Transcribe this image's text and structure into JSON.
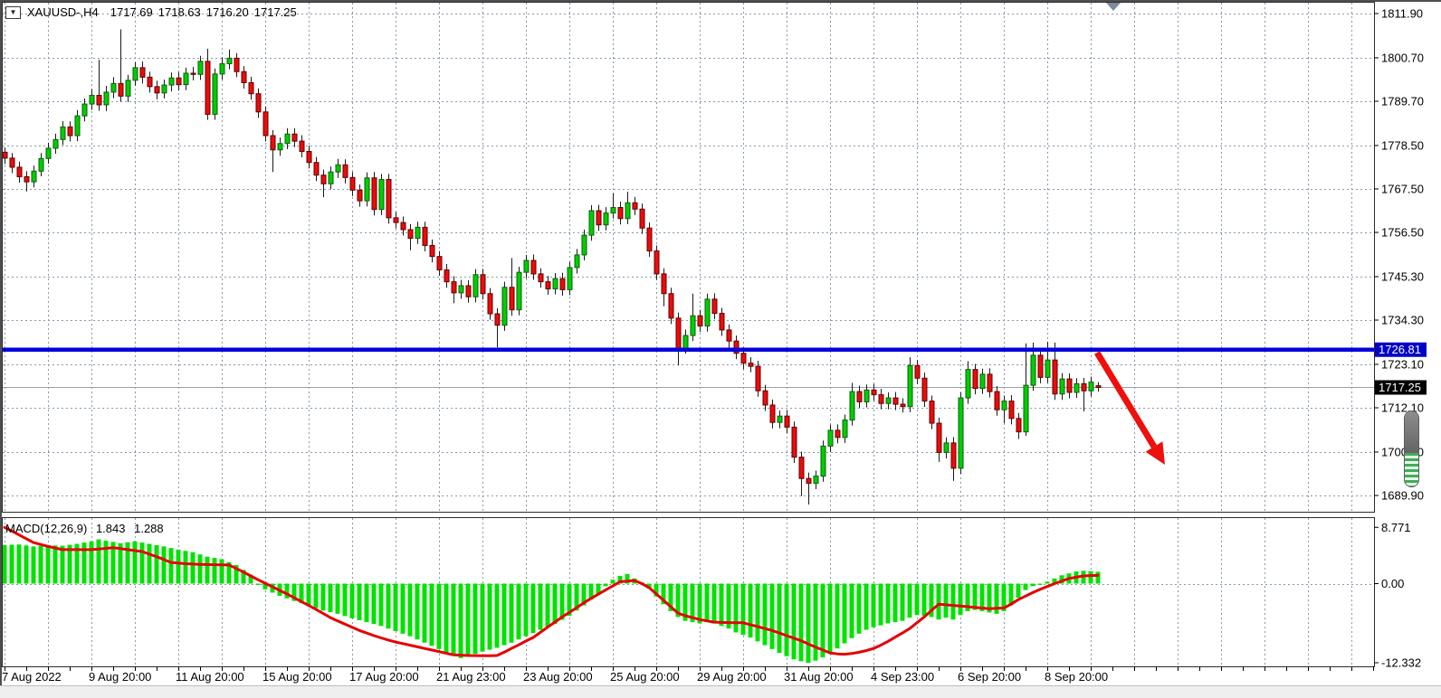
{
  "symbol_header": {
    "collapse_marker": "▼",
    "symbol_timeframe": "XAUUSD-,H4",
    "open": "1717.69",
    "high": "1718.63",
    "low": "1716.20",
    "close": "1717.25"
  },
  "indicator_header": {
    "name": "MACD(12,26,9)",
    "macd_value": "1.843",
    "signal_value": "1.288"
  },
  "price_axis": {
    "tick_labels": [
      "1811.90",
      "1800.70",
      "1789.70",
      "1778.50",
      "1767.50",
      "1756.50",
      "1745.30",
      "1734.30",
      "1723.10",
      "1712.10",
      "1700.90",
      "1689.90"
    ],
    "tick_values": [
      1811.9,
      1800.7,
      1789.7,
      1778.5,
      1767.5,
      1756.5,
      1745.3,
      1734.3,
      1723.1,
      1712.1,
      1700.9,
      1689.9
    ],
    "hline_label": "1726.81",
    "current_price_label": "1717.25"
  },
  "macd_axis": {
    "tick_labels": [
      "8.771",
      "0.00",
      "-12.332"
    ],
    "tick_values": [
      8.771,
      0,
      -12.332
    ]
  },
  "chart_data": {
    "type": "candlestick",
    "title": "XAUUSD- H4",
    "time_labels": [
      "7 Aug 2022",
      "9 Aug 20:00",
      "11 Aug 20:00",
      "15 Aug 20:00",
      "17 Aug 20:00",
      "21 Aug 23:00",
      "23 Aug 20:00",
      "25 Aug 20:00",
      "29 Aug 20:00",
      "31 Aug 20:00",
      "4 Sep 23:00",
      "6 Sep 20:00",
      "8 Sep 20:00"
    ],
    "candles_per_label": 12,
    "price_range_shown": [
      1685.0,
      1814.0
    ],
    "candles": [
      [
        1776.8,
        1778.0,
        1773.8,
        1775.3
      ],
      [
        1775.3,
        1776.6,
        1771.5,
        1773.0
      ],
      [
        1773.0,
        1774.4,
        1769.1,
        1770.6
      ],
      [
        1770.6,
        1772.0,
        1766.9,
        1769.3
      ],
      [
        1769.3,
        1773.4,
        1767.9,
        1772.0
      ],
      [
        1772.0,
        1776.6,
        1770.7,
        1775.2
      ],
      [
        1775.2,
        1779.2,
        1773.9,
        1777.8
      ],
      [
        1777.8,
        1781.5,
        1776.4,
        1780.0
      ],
      [
        1780.0,
        1784.7,
        1778.6,
        1783.2
      ],
      [
        1783.2,
        1784.6,
        1779.5,
        1781.0
      ],
      [
        1781.0,
        1787.5,
        1779.6,
        1786.0
      ],
      [
        1786.0,
        1790.4,
        1784.6,
        1789.0
      ],
      [
        1789.0,
        1792.8,
        1787.5,
        1791.2
      ],
      [
        1791.2,
        1800.2,
        1787.3,
        1788.8
      ],
      [
        1788.8,
        1793.6,
        1787.2,
        1792.0
      ],
      [
        1792.0,
        1795.8,
        1790.5,
        1794.2
      ],
      [
        1794.2,
        1807.9,
        1789.6,
        1791.0
      ],
      [
        1791.0,
        1796.4,
        1789.5,
        1795.0
      ],
      [
        1795.0,
        1799.6,
        1793.6,
        1798.2
      ],
      [
        1798.2,
        1799.8,
        1794.2,
        1795.8
      ],
      [
        1795.8,
        1797.2,
        1791.9,
        1793.4
      ],
      [
        1793.4,
        1794.9,
        1790.2,
        1791.8
      ],
      [
        1791.8,
        1795.2,
        1790.4,
        1793.8
      ],
      [
        1793.8,
        1797.0,
        1792.2,
        1795.6
      ],
      [
        1795.6,
        1797.1,
        1792.4,
        1793.9
      ],
      [
        1793.9,
        1798.2,
        1792.5,
        1796.8
      ],
      [
        1796.8,
        1798.4,
        1795.0,
        1796.5
      ],
      [
        1796.5,
        1801.2,
        1795.1,
        1799.8
      ],
      [
        1799.8,
        1803.0,
        1785.0,
        1786.4
      ],
      [
        1786.4,
        1798.0,
        1785.0,
        1796.6
      ],
      [
        1796.6,
        1800.8,
        1795.2,
        1799.2
      ],
      [
        1799.2,
        1802.8,
        1797.8,
        1800.6
      ],
      [
        1800.6,
        1801.9,
        1795.8,
        1797.2
      ],
      [
        1797.2,
        1798.6,
        1792.9,
        1794.4
      ],
      [
        1794.4,
        1795.9,
        1790.1,
        1791.6
      ],
      [
        1791.6,
        1793.0,
        1785.5,
        1787.0
      ],
      [
        1787.0,
        1788.4,
        1779.5,
        1781.0
      ],
      [
        1781.0,
        1782.4,
        1771.8,
        1777.4
      ],
      [
        1777.4,
        1780.5,
        1775.9,
        1779.0
      ],
      [
        1779.0,
        1782.9,
        1777.6,
        1781.4
      ],
      [
        1781.4,
        1782.9,
        1778.1,
        1779.6
      ],
      [
        1779.6,
        1781.1,
        1775.5,
        1777.0
      ],
      [
        1777.0,
        1778.5,
        1772.7,
        1774.2
      ],
      [
        1774.2,
        1775.6,
        1769.5,
        1771.0
      ],
      [
        1771.0,
        1772.4,
        1765.4,
        1768.8
      ],
      [
        1768.8,
        1773.2,
        1767.4,
        1771.8
      ],
      [
        1771.8,
        1775.1,
        1770.3,
        1773.6
      ],
      [
        1773.6,
        1775.0,
        1768.9,
        1770.4
      ],
      [
        1770.4,
        1771.8,
        1765.7,
        1767.2
      ],
      [
        1767.2,
        1768.6,
        1763.0,
        1764.5
      ],
      [
        1764.5,
        1771.7,
        1763.1,
        1770.3
      ],
      [
        1770.3,
        1771.8,
        1760.8,
        1762.3
      ],
      [
        1762.3,
        1771.3,
        1760.9,
        1769.9
      ],
      [
        1769.9,
        1771.3,
        1758.7,
        1760.2
      ],
      [
        1760.2,
        1761.7,
        1757.5,
        1759.0
      ],
      [
        1759.0,
        1760.5,
        1755.7,
        1757.2
      ],
      [
        1757.2,
        1758.6,
        1752.0,
        1755.0
      ],
      [
        1755.0,
        1759.2,
        1753.6,
        1757.8
      ],
      [
        1757.8,
        1759.2,
        1751.7,
        1753.2
      ],
      [
        1753.2,
        1754.7,
        1748.9,
        1750.4
      ],
      [
        1750.4,
        1751.8,
        1745.5,
        1747.0
      ],
      [
        1747.0,
        1748.5,
        1742.5,
        1744.0
      ],
      [
        1744.0,
        1745.4,
        1738.6,
        1741.2
      ],
      [
        1741.2,
        1744.5,
        1739.7,
        1743.0
      ],
      [
        1743.0,
        1744.4,
        1738.7,
        1740.2
      ],
      [
        1740.2,
        1747.2,
        1738.8,
        1745.8
      ],
      [
        1745.8,
        1747.3,
        1739.5,
        1741.0
      ],
      [
        1741.0,
        1742.4,
        1734.4,
        1735.9
      ],
      [
        1735.9,
        1737.3,
        1727.4,
        1733.0
      ],
      [
        1733.0,
        1744.0,
        1731.6,
        1742.6
      ],
      [
        1742.6,
        1750.0,
        1735.4,
        1736.9
      ],
      [
        1736.9,
        1747.8,
        1735.5,
        1746.4
      ],
      [
        1746.4,
        1750.8,
        1744.9,
        1749.4
      ],
      [
        1749.4,
        1750.9,
        1744.5,
        1746.0
      ],
      [
        1746.0,
        1747.4,
        1742.5,
        1744.0
      ],
      [
        1744.0,
        1745.5,
        1740.7,
        1742.2
      ],
      [
        1742.2,
        1746.2,
        1740.8,
        1744.8
      ],
      [
        1744.8,
        1746.3,
        1740.5,
        1742.0
      ],
      [
        1742.0,
        1749.0,
        1740.6,
        1747.6
      ],
      [
        1747.6,
        1752.3,
        1746.1,
        1750.8
      ],
      [
        1750.8,
        1757.2,
        1749.4,
        1755.8
      ],
      [
        1755.8,
        1763.4,
        1754.4,
        1762.0
      ],
      [
        1762.0,
        1763.5,
        1756.9,
        1758.4
      ],
      [
        1758.4,
        1762.9,
        1757.0,
        1761.4
      ],
      [
        1761.4,
        1766.4,
        1760.0,
        1762.8
      ],
      [
        1762.8,
        1764.3,
        1758.5,
        1760.0
      ],
      [
        1760.0,
        1766.8,
        1758.6,
        1764.0
      ],
      [
        1764.0,
        1765.5,
        1760.9,
        1762.4
      ],
      [
        1762.4,
        1763.8,
        1756.1,
        1757.6
      ],
      [
        1757.6,
        1759.0,
        1750.3,
        1751.8
      ],
      [
        1751.8,
        1753.2,
        1744.5,
        1746.0
      ],
      [
        1746.0,
        1747.4,
        1737.8,
        1741.0
      ],
      [
        1741.0,
        1742.5,
        1733.3,
        1734.8
      ],
      [
        1734.8,
        1736.2,
        1722.8,
        1727.2
      ],
      [
        1727.2,
        1731.9,
        1725.8,
        1730.4
      ],
      [
        1730.4,
        1741.0,
        1729.0,
        1735.4
      ],
      [
        1735.4,
        1736.9,
        1731.3,
        1732.8
      ],
      [
        1732.8,
        1741.0,
        1731.4,
        1739.6
      ],
      [
        1739.6,
        1741.1,
        1734.5,
        1736.0
      ],
      [
        1736.0,
        1737.4,
        1730.3,
        1731.8
      ],
      [
        1731.8,
        1733.2,
        1726.9,
        1729.0
      ],
      [
        1729.0,
        1730.4,
        1724.4,
        1725.9
      ],
      [
        1725.9,
        1727.4,
        1721.9,
        1723.4
      ],
      [
        1723.4,
        1724.9,
        1721.1,
        1722.6
      ],
      [
        1722.6,
        1724.0,
        1714.9,
        1716.4
      ],
      [
        1716.4,
        1717.9,
        1711.3,
        1712.8
      ],
      [
        1712.8,
        1714.2,
        1706.9,
        1708.4
      ],
      [
        1708.4,
        1711.4,
        1706.9,
        1710.0
      ],
      [
        1710.0,
        1711.5,
        1705.7,
        1707.2
      ],
      [
        1707.2,
        1708.6,
        1698.1,
        1699.6
      ],
      [
        1699.6,
        1701.0,
        1689.8,
        1694.2
      ],
      [
        1694.2,
        1695.7,
        1687.6,
        1693.0
      ],
      [
        1693.0,
        1696.2,
        1691.5,
        1694.8
      ],
      [
        1694.8,
        1703.8,
        1693.4,
        1702.4
      ],
      [
        1702.4,
        1707.8,
        1700.9,
        1706.4
      ],
      [
        1706.4,
        1707.9,
        1703.1,
        1704.6
      ],
      [
        1704.6,
        1710.4,
        1703.2,
        1709.0
      ],
      [
        1709.0,
        1718.4,
        1707.6,
        1716.2
      ],
      [
        1716.2,
        1717.7,
        1712.1,
        1713.6
      ],
      [
        1713.6,
        1718.0,
        1712.2,
        1716.6
      ],
      [
        1716.6,
        1718.1,
        1713.9,
        1715.4
      ],
      [
        1715.4,
        1716.9,
        1711.7,
        1713.2
      ],
      [
        1713.2,
        1716.0,
        1711.7,
        1714.6
      ],
      [
        1714.6,
        1716.1,
        1711.5,
        1713.0
      ],
      [
        1713.0,
        1714.5,
        1710.9,
        1712.4
      ],
      [
        1712.4,
        1724.9,
        1711.0,
        1722.8
      ],
      [
        1722.8,
        1724.2,
        1718.1,
        1719.6
      ],
      [
        1719.6,
        1721.0,
        1712.3,
        1713.8
      ],
      [
        1713.8,
        1715.2,
        1706.7,
        1708.2
      ],
      [
        1708.2,
        1709.6,
        1698.4,
        1700.8
      ],
      [
        1700.8,
        1704.6,
        1699.3,
        1703.2
      ],
      [
        1703.2,
        1704.7,
        1693.6,
        1696.8
      ],
      [
        1696.8,
        1716.0,
        1695.4,
        1714.6
      ],
      [
        1714.6,
        1723.9,
        1713.1,
        1721.8
      ],
      [
        1721.8,
        1723.2,
        1715.5,
        1717.0
      ],
      [
        1717.0,
        1722.0,
        1715.6,
        1720.6
      ],
      [
        1720.6,
        1722.1,
        1714.7,
        1716.2
      ],
      [
        1716.2,
        1717.6,
        1710.1,
        1711.6
      ],
      [
        1711.6,
        1715.2,
        1708.2,
        1713.8
      ],
      [
        1713.8,
        1715.3,
        1707.9,
        1709.4
      ],
      [
        1709.4,
        1710.8,
        1704.2,
        1706.0
      ],
      [
        1706.0,
        1728.4,
        1705.0,
        1717.8
      ],
      [
        1717.8,
        1728.6,
        1716.4,
        1725.4
      ],
      [
        1725.4,
        1726.9,
        1718.3,
        1719.8
      ],
      [
        1719.8,
        1728.8,
        1718.4,
        1724.2
      ],
      [
        1724.2,
        1728.6,
        1714.1,
        1715.6
      ],
      [
        1715.6,
        1720.9,
        1714.1,
        1719.4
      ],
      [
        1719.4,
        1720.8,
        1714.5,
        1716.0
      ],
      [
        1716.0,
        1719.6,
        1714.6,
        1718.2
      ],
      [
        1718.2,
        1719.7,
        1711.2,
        1716.4
      ],
      [
        1716.4,
        1720.0,
        1715.0,
        1718.6
      ],
      [
        1717.69,
        1718.63,
        1716.2,
        1717.25
      ]
    ],
    "overlays": {
      "horizontal_line_price": 1726.81,
      "current_price": 1717.25
    },
    "indicator": {
      "type": "macd_histogram",
      "params": [
        12,
        26,
        9
      ],
      "last_macd": 1.843,
      "last_signal": 1.288,
      "axis_range": [
        -12.332,
        8.771
      ],
      "histogram": [
        6.0,
        6.05,
        6.1,
        5.95,
        5.8,
        5.9,
        6.0,
        5.95,
        5.9,
        6.05,
        6.2,
        6.4,
        6.6,
        6.9,
        6.7,
        6.5,
        6.3,
        6.45,
        6.6,
        6.4,
        6.2,
        6.0,
        5.8,
        5.55,
        5.3,
        5.1,
        4.9,
        4.55,
        4.2,
        4.0,
        3.8,
        3.35,
        2.9,
        2.15,
        1.4,
        -0.2,
        -0.9,
        -1.4,
        -1.9,
        -2.3,
        -2.7,
        -3.05,
        -3.4,
        -3.8,
        -4.2,
        -4.45,
        -4.7,
        -5.05,
        -5.4,
        -5.7,
        -6.0,
        -6.3,
        -6.6,
        -7.0,
        -7.4,
        -7.8,
        -8.2,
        -8.7,
        -9.2,
        -9.7,
        -10.2,
        -10.7,
        -11.2,
        -11.6,
        -11.3,
        -10.95,
        -10.6,
        -10.3,
        -10.0,
        -9.6,
        -9.2,
        -8.7,
        -8.2,
        -7.7,
        -7.2,
        -6.75,
        -6.3,
        -5.65,
        -5.0,
        -4.2,
        -3.4,
        -2.5,
        -1.6,
        -0.4,
        0.6,
        1.2,
        1.5,
        0.8,
        0.2,
        -0.8,
        -2.0,
        -3.2,
        -4.3,
        -5.2,
        -5.8,
        -6.0,
        -6.2,
        -6.0,
        -6.2,
        -6.6,
        -7.0,
        -7.6,
        -8.0,
        -8.4,
        -9.0,
        -9.6,
        -10.2,
        -10.8,
        -11.3,
        -11.8,
        -12.1,
        -12.33,
        -12.0,
        -11.5,
        -10.8,
        -10.1,
        -9.3,
        -8.5,
        -7.8,
        -7.2,
        -6.8,
        -6.5,
        -6.2,
        -6.0,
        -5.8,
        -5.3,
        -4.9,
        -5.0,
        -5.2,
        -5.6,
        -5.3,
        -5.6,
        -4.9,
        -4.3,
        -4.1,
        -4.3,
        -4.5,
        -4.7,
        -4.3,
        -3.4,
        -2.2,
        -1.0,
        -0.4,
        -0.2,
        0.3,
        0.8,
        1.3,
        1.6,
        1.9,
        2.0,
        1.95,
        1.843
      ],
      "signal": [
        8.77,
        8.2,
        7.6,
        7.0,
        6.4,
        6.1,
        5.8,
        5.55,
        5.3,
        5.3,
        5.3,
        5.3,
        5.3,
        5.4,
        5.5,
        5.6,
        5.45,
        5.3,
        5.15,
        5.0,
        4.6,
        4.2,
        3.75,
        3.3,
        3.2,
        3.1,
        3.05,
        3.0,
        2.97,
        2.95,
        2.92,
        2.9,
        2.35,
        1.8,
        1.2,
        0.6,
        0.05,
        -0.5,
        -1.05,
        -1.6,
        -2.2,
        -2.8,
        -3.4,
        -4.0,
        -4.65,
        -5.3,
        -5.8,
        -6.3,
        -6.8,
        -7.3,
        -7.7,
        -8.1,
        -8.45,
        -8.8,
        -9.1,
        -9.35,
        -9.6,
        -9.85,
        -10.1,
        -10.35,
        -10.6,
        -10.85,
        -11.1,
        -11.15,
        -11.2,
        -11.22,
        -11.24,
        -11.25,
        -11.2,
        -10.7,
        -10.1,
        -9.55,
        -8.95,
        -8.4,
        -7.6,
        -6.8,
        -6.0,
        -5.2,
        -4.5,
        -3.75,
        -3.0,
        -2.3,
        -1.65,
        -1.0,
        -0.35,
        0.3,
        0.4,
        0.5,
        0.0,
        -0.6,
        -1.6,
        -2.6,
        -3.6,
        -4.6,
        -5.0,
        -5.3,
        -5.6,
        -5.8,
        -6.0,
        -6.05,
        -6.08,
        -6.1,
        -6.1,
        -6.4,
        -6.7,
        -7.0,
        -7.3,
        -7.7,
        -8.1,
        -8.5,
        -8.9,
        -9.4,
        -9.9,
        -10.35,
        -10.8,
        -10.95,
        -11.0,
        -10.9,
        -10.7,
        -10.45,
        -10.1,
        -9.6,
        -9.0,
        -8.35,
        -7.7,
        -7.0,
        -6.1,
        -5.2,
        -4.2,
        -3.2,
        -3.3,
        -3.4,
        -3.5,
        -3.6,
        -3.7,
        -3.8,
        -3.9,
        -3.85,
        -3.8,
        -3.2,
        -2.5,
        -1.95,
        -1.4,
        -0.9,
        -0.45,
        0.0,
        0.4,
        0.8,
        1.0,
        1.2,
        1.25,
        1.288
      ]
    }
  },
  "colors": {
    "bull": "#00CE00",
    "bull_border": "#0b5d0b",
    "bear": "#EE0B0B",
    "bear_border": "#5c0000",
    "wick": "#1a1a1a",
    "grid": "#8799ab",
    "hline": "#0000DC",
    "hline_label_bg": "#0000C8",
    "current_price_label_bg": "#000000",
    "price_line": "#9aa0a6",
    "histogram": "#00E200",
    "signal_line": "#E60000",
    "arrow": "#ED100C",
    "axis_text": "#000000",
    "pane_border": "#2b2b2b",
    "shift_marker": "#7d8b9e"
  }
}
